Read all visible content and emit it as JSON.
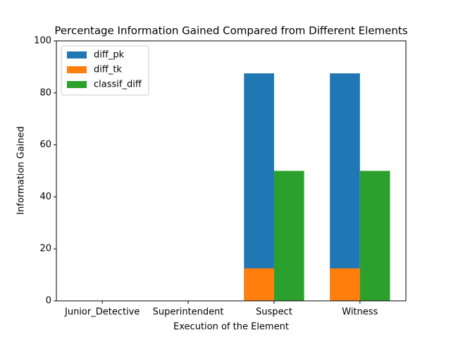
{
  "chart_data": {
    "type": "bar",
    "title": "Percentage Information Gained Compared from Different Elements",
    "x_label": "Execution of the Element",
    "y_label": "Information Gained",
    "categories": [
      "Junior_Detective",
      "Superintendent",
      "Suspect",
      "Witness"
    ],
    "series": [
      {
        "name": "diff_pk",
        "color": "#1f77b4",
        "values": [
          0,
          0,
          87.5,
          87.5
        ]
      },
      {
        "name": "diff_tk",
        "color": "#ff7f0e",
        "values": [
          0,
          0,
          12.5,
          12.5
        ]
      },
      {
        "name": "classif_diff",
        "color": "#2ca02c",
        "values": [
          0,
          0,
          50,
          50
        ]
      }
    ],
    "ylim": [
      0,
      100
    ],
    "yticks": [
      0,
      20,
      40,
      60,
      80,
      100
    ],
    "grid": false,
    "legend": "upper-left"
  }
}
